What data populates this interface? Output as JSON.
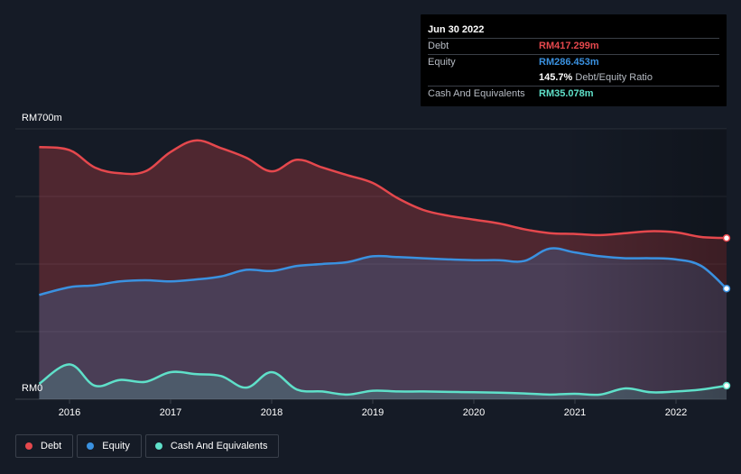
{
  "colors": {
    "debt": "#e5484d",
    "equity": "#3a91e0",
    "cash": "#5fe0c9",
    "background": "#151b26",
    "grid": "#2a303b"
  },
  "tooltip": {
    "date": "Jun 30 2022",
    "debt_label": "Debt",
    "debt_value": "RM417.299m",
    "equity_label": "Equity",
    "equity_value": "RM286.453m",
    "ratio_value": "145.7%",
    "ratio_label": "Debt/Equity Ratio",
    "cash_label": "Cash And Equivalents",
    "cash_value": "RM35.078m"
  },
  "legend": {
    "debt": "Debt",
    "equity": "Equity",
    "cash": "Cash And Equivalents"
  },
  "chart_data": {
    "type": "area",
    "x_ticks": [
      "2016",
      "2017",
      "2018",
      "2019",
      "2020",
      "2021",
      "2022"
    ],
    "y_tick_labels": {
      "top": "RM700m",
      "bottom": "RM0"
    },
    "ylim": [
      0,
      700
    ],
    "xlim": [
      2015.7,
      2022.5
    ],
    "grid": true,
    "legend_position": "bottom-left",
    "x": [
      2015.7,
      2016.0,
      2016.25,
      2016.5,
      2016.75,
      2017.0,
      2017.25,
      2017.5,
      2017.75,
      2018.0,
      2018.25,
      2018.5,
      2018.75,
      2019.0,
      2019.25,
      2019.5,
      2019.75,
      2020.0,
      2020.25,
      2020.5,
      2020.75,
      2021.0,
      2021.25,
      2021.5,
      2021.75,
      2022.0,
      2022.25,
      2022.5
    ],
    "series": [
      {
        "name": "Debt",
        "values": [
          653,
          645,
          600,
          585,
          590,
          640,
          670,
          650,
          625,
          590,
          620,
          600,
          580,
          560,
          520,
          490,
          475,
          465,
          455,
          440,
          430,
          428,
          425,
          430,
          435,
          432,
          420,
          417.299
        ]
      },
      {
        "name": "Equity",
        "values": [
          270,
          290,
          295,
          305,
          308,
          305,
          310,
          318,
          335,
          332,
          345,
          350,
          355,
          370,
          368,
          365,
          362,
          360,
          360,
          358,
          390,
          380,
          370,
          365,
          365,
          362,
          345,
          286.453
        ]
      },
      {
        "name": "Cash And Equivalents",
        "values": [
          40,
          90,
          35,
          50,
          45,
          70,
          65,
          60,
          30,
          70,
          25,
          20,
          12,
          22,
          20,
          20,
          19,
          18,
          17,
          15,
          12,
          14,
          12,
          28,
          18,
          20,
          25,
          35.078
        ]
      }
    ]
  }
}
